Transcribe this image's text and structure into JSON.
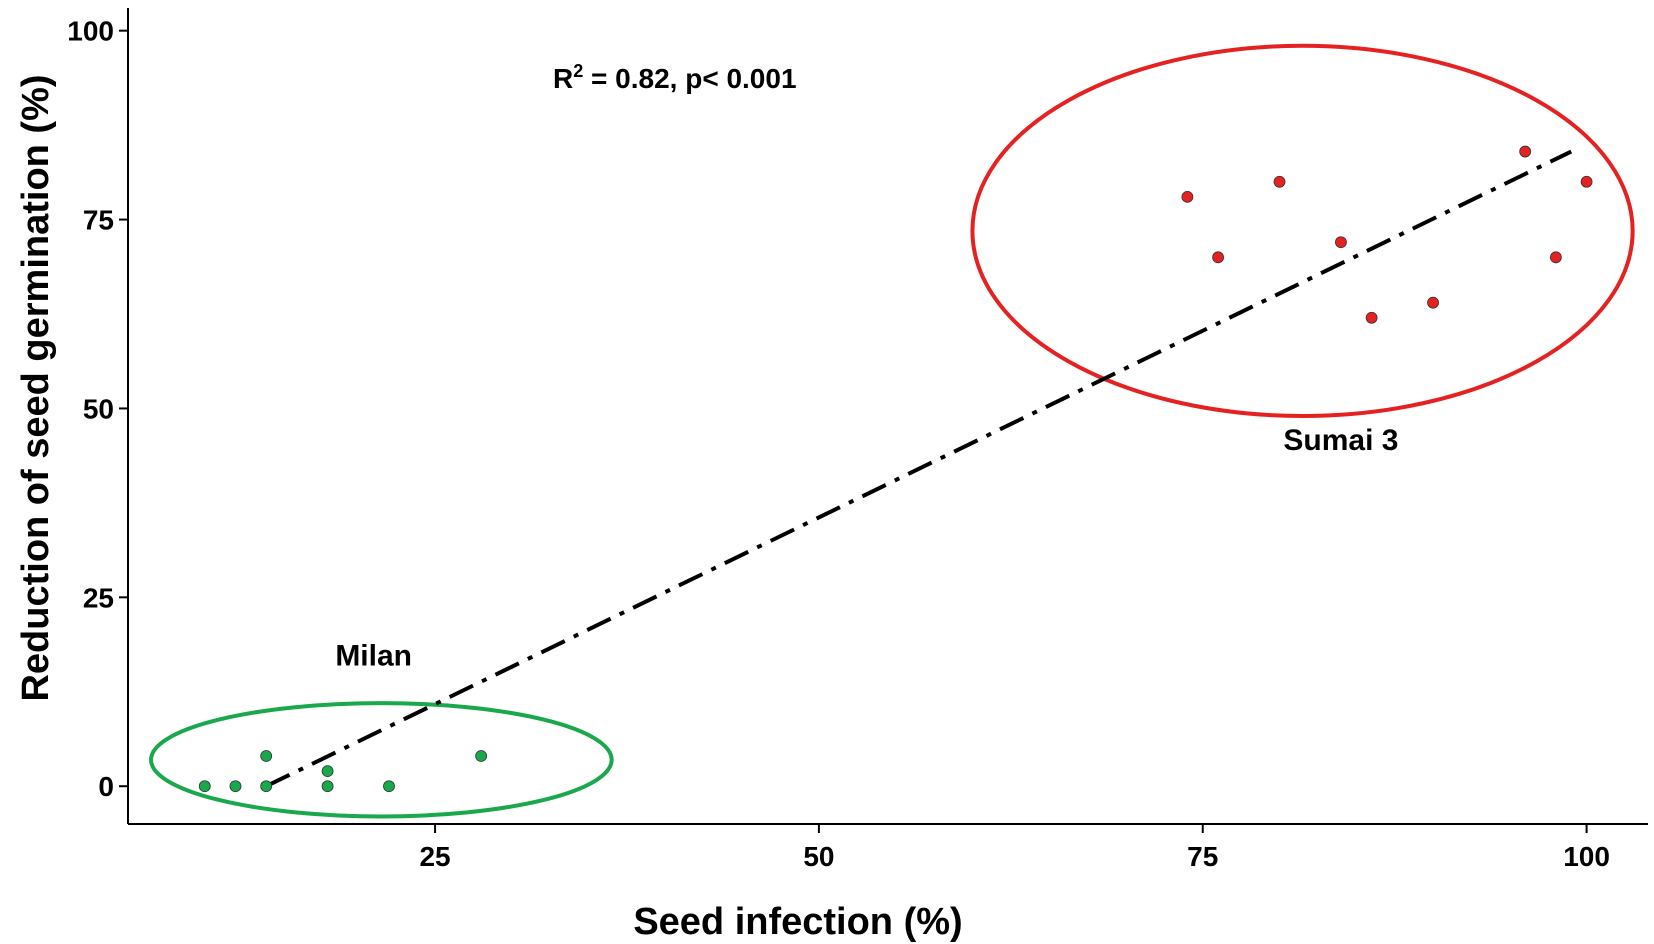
{
  "chart_data": {
    "type": "scatter",
    "title": "",
    "xlabel": "Seed infection (%)",
    "ylabel": "Reduction of  seed germination (%)",
    "xlim": [
      5,
      104
    ],
    "ylim": [
      -5,
      103
    ],
    "xticks": [
      25,
      50,
      75,
      100
    ],
    "yticks": [
      0,
      25,
      50,
      75,
      100
    ],
    "grid": false,
    "annotation": {
      "prefix": "R",
      "sup": "2",
      "suffix": " = 0.82, p< 0.001"
    },
    "fit_line": {
      "x": [
        14,
        99
      ],
      "y": [
        0,
        84
      ]
    },
    "groups": [
      {
        "name": "Milan",
        "color": "#1aa84c",
        "ellipse_color": "#1aa84c",
        "points": [
          {
            "x": 10,
            "y": 0
          },
          {
            "x": 12,
            "y": 0
          },
          {
            "x": 14,
            "y": 0
          },
          {
            "x": 14,
            "y": 4
          },
          {
            "x": 18,
            "y": 0
          },
          {
            "x": 18,
            "y": 2
          },
          {
            "x": 22,
            "y": 0
          },
          {
            "x": 28,
            "y": 4
          }
        ],
        "ellipse": {
          "cx": 21.5,
          "cy": 3.5,
          "rx": 15,
          "ry": 7.5
        }
      },
      {
        "name": "Sumai 3",
        "color": "#e52222",
        "ellipse_color": "#e52222",
        "points": [
          {
            "x": 74,
            "y": 78
          },
          {
            "x": 76,
            "y": 70
          },
          {
            "x": 80,
            "y": 80
          },
          {
            "x": 84,
            "y": 72
          },
          {
            "x": 86,
            "y": 62
          },
          {
            "x": 90,
            "y": 64
          },
          {
            "x": 96,
            "y": 84
          },
          {
            "x": 98,
            "y": 70
          },
          {
            "x": 100,
            "y": 80
          }
        ],
        "ellipse": {
          "cx": 81.5,
          "cy": 73.5,
          "rx": 21.5,
          "ry": 24.5
        }
      }
    ]
  }
}
